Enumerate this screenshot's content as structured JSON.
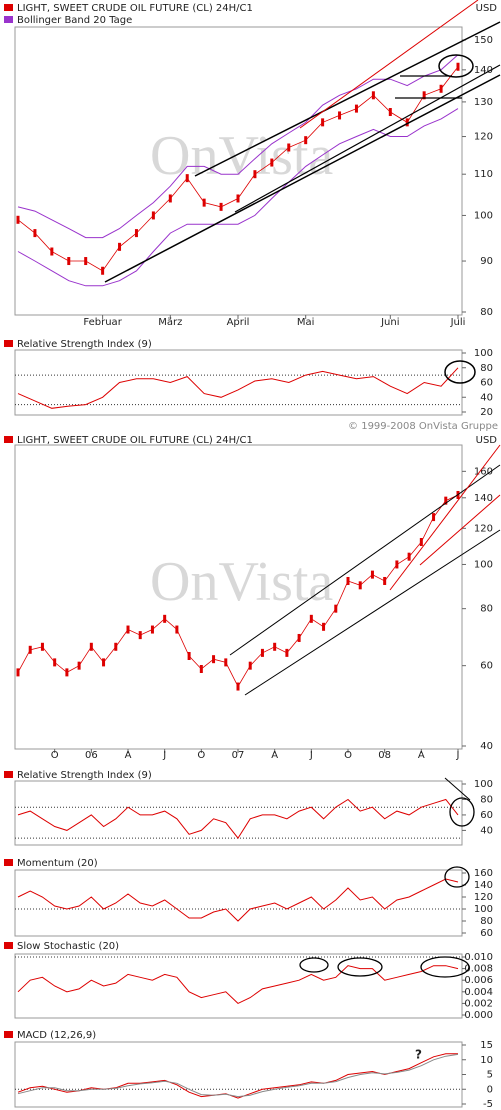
{
  "copyright": "© 1999-2008 OnVista Gruppe",
  "chart_data": [
    {
      "type": "ohlc",
      "currency": "USD",
      "watermark": "OnVista",
      "log": true,
      "categories": [
        null,
        null,
        null,
        null,
        null,
        "Februar",
        null,
        null,
        null,
        "März",
        null,
        null,
        null,
        "April",
        null,
        null,
        null,
        "Mai",
        null,
        null,
        null,
        null,
        "Juni",
        null,
        null,
        null,
        "Juli"
      ],
      "series": [
        {
          "name": "LIGHT, SWEET CRUDE OIL FUTURE (CL) 24H/C1",
          "color": "#dd0000",
          "values": [
            99,
            96,
            92,
            90,
            90,
            88,
            93,
            96,
            100,
            104,
            109,
            103,
            102,
            104,
            110,
            113,
            117,
            119,
            124,
            126,
            128,
            132,
            127,
            124,
            132,
            134,
            141
          ]
        },
        {
          "name": "Bollinger Band 20 Tage",
          "color": "#9933cc",
          "upper": [
            102,
            101,
            99,
            97,
            95,
            95,
            97,
            100,
            103,
            107,
            112,
            112,
            110,
            110,
            114,
            118,
            121,
            124,
            129,
            132,
            134,
            137,
            137,
            135,
            138,
            140,
            145
          ],
          "lower": [
            92,
            90,
            88,
            86,
            85,
            85,
            86,
            88,
            92,
            96,
            98,
            98,
            98,
            98,
            100,
            104,
            108,
            112,
            115,
            118,
            120,
            122,
            120,
            120,
            123,
            125,
            128
          ]
        }
      ],
      "ylim": [
        80,
        153.5
      ],
      "yticks": [
        80,
        90,
        100,
        110,
        120,
        130,
        140,
        150
      ]
    },
    {
      "type": "line",
      "series": [
        {
          "name": "Relative Strength Index (9)",
          "color": "#dd0000",
          "values": [
            45,
            35,
            25,
            28,
            30,
            40,
            60,
            65,
            65,
            60,
            68,
            45,
            40,
            50,
            62,
            65,
            60,
            70,
            75,
            70,
            65,
            68,
            55,
            45,
            60,
            55,
            80
          ]
        }
      ],
      "ylim": [
        20,
        100
      ],
      "yticks": [
        20,
        40,
        60,
        80,
        100
      ],
      "ref_lines": [
        30,
        70
      ]
    },
    {
      "type": "ohlc",
      "currency": "USD",
      "watermark": "OnVista",
      "log": true,
      "categories": [
        null,
        null,
        null,
        "O",
        null,
        null,
        "06",
        null,
        null,
        "A",
        null,
        null,
        "J",
        null,
        null,
        "O",
        null,
        null,
        "07",
        null,
        null,
        "A",
        null,
        null,
        "J",
        null,
        null,
        "O",
        null,
        null,
        "08",
        null,
        null,
        "A",
        null,
        null,
        "J"
      ],
      "series": [
        {
          "name": "LIGHT, SWEET CRUDE OIL FUTURE (CL) 24H/C1",
          "color": "#dd0000",
          "values": [
            58,
            65,
            66,
            61,
            58,
            60,
            66,
            61,
            66,
            72,
            70,
            72,
            76,
            72,
            63,
            59,
            62,
            61,
            54,
            60,
            64,
            66,
            64,
            69,
            76,
            73,
            80,
            92,
            90,
            95,
            92,
            100,
            104,
            112,
            127,
            138,
            142
          ]
        }
      ],
      "ylim": [
        40,
        180
      ],
      "yticks": [
        40,
        60,
        80,
        100,
        120,
        140,
        160
      ]
    },
    {
      "type": "line",
      "series": [
        {
          "name": "Relative Strength Index (9)",
          "color": "#dd0000",
          "values": [
            60,
            65,
            55,
            45,
            40,
            50,
            60,
            45,
            55,
            70,
            60,
            60,
            65,
            55,
            35,
            40,
            55,
            50,
            30,
            55,
            60,
            60,
            55,
            65,
            70,
            55,
            70,
            80,
            65,
            70,
            55,
            65,
            60,
            70,
            75,
            80,
            60
          ]
        }
      ],
      "ylim": [
        25,
        100
      ],
      "yticks": [
        40,
        60,
        80,
        100
      ],
      "ref_lines": [
        30,
        70
      ]
    },
    {
      "type": "line",
      "series": [
        {
          "name": "Momentum (20)",
          "color": "#dd0000",
          "values": [
            120,
            130,
            120,
            105,
            100,
            105,
            120,
            100,
            110,
            125,
            110,
            105,
            115,
            100,
            85,
            85,
            95,
            100,
            80,
            100,
            105,
            110,
            100,
            110,
            120,
            100,
            115,
            135,
            115,
            120,
            100,
            115,
            120,
            130,
            140,
            150,
            145
          ]
        }
      ],
      "ylim": [
        60,
        160
      ],
      "yticks": [
        60,
        80,
        100,
        120,
        140,
        160
      ],
      "ref_lines": [
        100
      ]
    },
    {
      "type": "line",
      "series": [
        {
          "name": "Slow Stochastic (20)",
          "color": "#dd0000",
          "values": [
            0.004,
            0.006,
            0.0065,
            0.005,
            0.004,
            0.0045,
            0.006,
            0.005,
            0.0055,
            0.007,
            0.0065,
            0.006,
            0.007,
            0.0065,
            0.004,
            0.003,
            0.0035,
            0.004,
            0.002,
            0.003,
            0.0045,
            0.005,
            0.0055,
            0.006,
            0.007,
            0.006,
            0.0065,
            0.0085,
            0.008,
            0.008,
            0.006,
            0.0065,
            0.007,
            0.0075,
            0.0085,
            0.0085,
            0.008
          ]
        }
      ],
      "ylim": [
        0,
        0.01
      ],
      "yticks": [
        {
          "value": 0,
          "label": "0.000"
        },
        {
          "value": 0.002,
          "label": "0.002"
        },
        {
          "value": 0.004,
          "label": "0.004"
        },
        {
          "value": 0.006,
          "label": "0.006"
        },
        {
          "value": 0.008,
          "label": "0.008"
        },
        {
          "value": 0.01,
          "label": "0.010"
        }
      ],
      "ref_lines": [
        0.01
      ]
    },
    {
      "type": "line",
      "annotation": "?",
      "series": [
        {
          "name": "MACD (12,26,9)",
          "color": "#dd0000",
          "values": [
            -1,
            0.5,
            1,
            0,
            -1,
            -0.5,
            0.5,
            0,
            0.5,
            2,
            2,
            2.5,
            3,
            1.5,
            -1,
            -2.5,
            -2,
            -1.5,
            -3,
            -1.5,
            0,
            0.5,
            1,
            1.5,
            2.5,
            2,
            3,
            5,
            5.5,
            6,
            5,
            6,
            7,
            9,
            11,
            12,
            12
          ]
        },
        {
          "color": "#888888",
          "values": [
            -1.5,
            -0.5,
            0.5,
            0.5,
            -0.5,
            -0.5,
            0,
            0,
            0.3,
            1.2,
            1.8,
            2.2,
            2.7,
            2,
            0,
            -1.8,
            -2,
            -1.7,
            -2.5,
            -2,
            -0.8,
            0,
            0.7,
            1.2,
            2,
            2,
            2.6,
            4,
            5,
            5.6,
            5.2,
            5.7,
            6.5,
            8,
            10,
            11.2,
            11.8
          ]
        }
      ],
      "ylim": [
        -5,
        15
      ],
      "yticks": [
        -5,
        0,
        5,
        10,
        15
      ],
      "ref_lines": [
        0
      ]
    }
  ]
}
